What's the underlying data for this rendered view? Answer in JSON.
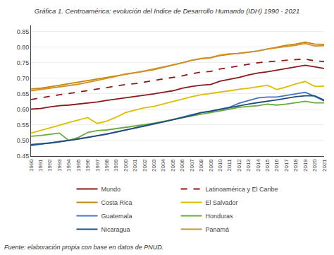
{
  "chart_data": {
    "type": "line",
    "title": "Gráfica 1. Centroamérica: evolución del Índice de Desarrollo Humando (IDH) 1990 - 2021",
    "annotations": [
      "Fuente: elaboración propia con base en datos de PNUD."
    ],
    "x": [
      1990,
      1991,
      1992,
      1993,
      1994,
      1995,
      1996,
      1997,
      1998,
      1999,
      2000,
      2001,
      2002,
      2003,
      2004,
      2005,
      2006,
      2007,
      2008,
      2009,
      2010,
      2011,
      2012,
      2013,
      2014,
      2015,
      2016,
      2017,
      2018,
      2019,
      2020,
      2021
    ],
    "xlim": [
      1990,
      2021
    ],
    "xticks": [
      1990,
      1991,
      1992,
      1993,
      1994,
      1995,
      1996,
      1997,
      1998,
      1999,
      2000,
      2001,
      2002,
      2003,
      2004,
      2005,
      2006,
      2007,
      2008,
      2009,
      2010,
      2011,
      2012,
      2013,
      2014,
      2015,
      2016,
      2017,
      2018,
      2019,
      2020,
      2021
    ],
    "ylim": [
      0.45,
      0.87
    ],
    "yticks": [
      0.45,
      {
        "value": 0.5,
        "label": "0.50"
      },
      0.55,
      {
        "value": 0.6,
        "label": "0.60"
      },
      0.65,
      {
        "value": 0.7,
        "label": "0.70"
      },
      0.75,
      {
        "value": 0.8,
        "label": "0.80"
      },
      0.85
    ],
    "grid": "y",
    "legend": "bottom",
    "series": [
      {
        "name": "Mundo",
        "color": "#8B1A1A",
        "line_style": "solid",
        "values": [
          0.601,
          0.603,
          0.608,
          0.612,
          0.614,
          0.617,
          0.62,
          0.624,
          0.629,
          0.633,
          0.638,
          0.641,
          0.645,
          0.65,
          0.655,
          0.66,
          0.668,
          0.674,
          0.678,
          0.68,
          0.691,
          0.697,
          0.703,
          0.711,
          0.717,
          0.721,
          0.726,
          0.731,
          0.737,
          0.742,
          0.737,
          0.732
        ]
      },
      {
        "name": "Latinoamérica y El Caribe",
        "color": "#8B1A1A",
        "line_style": "dashed",
        "values": [
          0.632,
          0.637,
          0.643,
          0.647,
          0.651,
          0.656,
          0.66,
          0.665,
          0.67,
          0.676,
          0.68,
          0.683,
          0.688,
          0.693,
          0.698,
          0.703,
          0.708,
          0.715,
          0.72,
          0.722,
          0.73,
          0.735,
          0.74,
          0.746,
          0.75,
          0.753,
          0.756,
          0.758,
          0.76,
          0.762,
          0.756,
          0.754
        ]
      },
      {
        "name": "Costa Rica",
        "color": "#C8860A",
        "line_style": "solid",
        "values": [
          0.666,
          0.668,
          0.673,
          0.678,
          0.682,
          0.688,
          0.693,
          0.698,
          0.703,
          0.707,
          0.712,
          0.717,
          0.722,
          0.728,
          0.735,
          0.742,
          0.75,
          0.758,
          0.763,
          0.766,
          0.773,
          0.777,
          0.78,
          0.784,
          0.788,
          0.794,
          0.801,
          0.806,
          0.81,
          0.816,
          0.81,
          0.809
        ]
      },
      {
        "name": "El Salvador",
        "color": "#DAC000",
        "line_style": "solid",
        "values": [
          0.524,
          0.532,
          0.54,
          0.549,
          0.558,
          0.566,
          0.574,
          0.555,
          0.562,
          0.575,
          0.59,
          0.598,
          0.605,
          0.61,
          0.618,
          0.625,
          0.633,
          0.641,
          0.647,
          0.651,
          0.655,
          0.66,
          0.665,
          0.668,
          0.673,
          0.678,
          0.664,
          0.672,
          0.682,
          0.69,
          0.674,
          0.675
        ]
      },
      {
        "name": "Guatemala",
        "color": "#4472C4",
        "line_style": "solid",
        "values": [
          0.484,
          0.488,
          0.492,
          0.497,
          0.501,
          0.506,
          0.511,
          0.515,
          0.52,
          0.528,
          0.534,
          0.539,
          0.546,
          0.553,
          0.56,
          0.567,
          0.575,
          0.583,
          0.59,
          0.595,
          0.601,
          0.607,
          0.62,
          0.628,
          0.637,
          0.64,
          0.64,
          0.645,
          0.65,
          0.655,
          0.642,
          0.627
        ]
      },
      {
        "name": "Honduras",
        "color": "#6AAB3A",
        "line_style": "solid",
        "values": [
          0.514,
          0.516,
          0.52,
          0.524,
          0.5,
          0.51,
          0.526,
          0.532,
          0.534,
          0.538,
          0.542,
          0.547,
          0.551,
          0.556,
          0.562,
          0.567,
          0.573,
          0.579,
          0.585,
          0.59,
          0.595,
          0.601,
          0.607,
          0.61,
          0.612,
          0.617,
          0.614,
          0.617,
          0.621,
          0.626,
          0.621,
          0.621
        ]
      },
      {
        "name": "Nicaragua",
        "color": "#1F4E79",
        "line_style": "solid",
        "values": [
          0.487,
          0.489,
          0.492,
          0.496,
          0.5,
          0.505,
          0.51,
          0.515,
          0.521,
          0.527,
          0.534,
          0.54,
          0.547,
          0.554,
          0.56,
          0.567,
          0.574,
          0.581,
          0.59,
          0.594,
          0.6,
          0.606,
          0.612,
          0.617,
          0.622,
          0.626,
          0.631,
          0.636,
          0.641,
          0.644,
          0.644,
          0.63
        ]
      },
      {
        "name": "Panamá",
        "color": "#D4902A",
        "line_style": "solid",
        "values": [
          0.66,
          0.664,
          0.668,
          0.672,
          0.676,
          0.681,
          0.687,
          0.693,
          0.699,
          0.706,
          0.714,
          0.718,
          0.724,
          0.73,
          0.737,
          0.743,
          0.75,
          0.758,
          0.764,
          0.767,
          0.775,
          0.779,
          0.78,
          0.784,
          0.788,
          0.794,
          0.798,
          0.802,
          0.806,
          0.812,
          0.804,
          0.805
        ]
      }
    ]
  }
}
